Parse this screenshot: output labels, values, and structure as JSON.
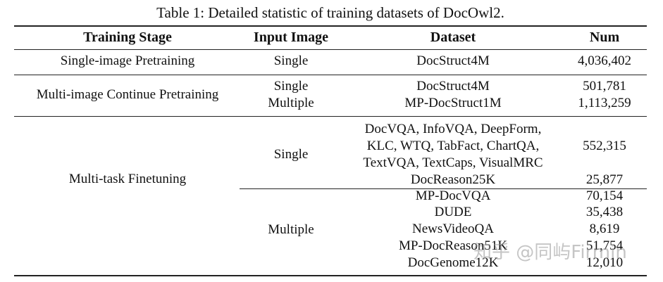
{
  "caption": "Table 1: Detailed statistic of training datasets of DocOwl2.",
  "headers": {
    "stage": "Training Stage",
    "input": "Input Image",
    "dataset": "Dataset",
    "num": "Num"
  },
  "rows": {
    "single_pretrain": {
      "stage": "Single-image Pretraining",
      "input": "Single",
      "dataset": "DocStruct4M",
      "num": "4,036,402"
    },
    "multi_pretrain": {
      "stage": "Multi-image Continue Pretraining",
      "single": {
        "input": "Single",
        "dataset": "DocStruct4M",
        "num": "501,781"
      },
      "multiple": {
        "input": "Multiple",
        "dataset": "MP-DocStruct1M",
        "num": "1,113,259"
      }
    },
    "finetune": {
      "stage": "Multi-task Finetuning",
      "single_input": "Single",
      "single_datasets": {
        "line1": "DocVQA, InfoVQA, DeepForm,",
        "line2": "KLC, WTQ, TabFact, ChartQA,",
        "line3": "TextVQA, TextCaps, VisualMRC",
        "num": "552,315"
      },
      "docreason": {
        "dataset": "DocReason25K",
        "num": "25,877"
      },
      "multiple_input": "Multiple",
      "multiple": [
        {
          "dataset": "MP-DocVQA",
          "num": "70,154"
        },
        {
          "dataset": "DUDE",
          "num": "35,438"
        },
        {
          "dataset": "NewsVideoQA",
          "num": "8,619"
        },
        {
          "dataset": "MP-DocReason51K",
          "num": "51,754"
        },
        {
          "dataset": "DocGenome12K",
          "num": "12,010"
        }
      ]
    }
  },
  "watermark": "知乎 @同屿Firmin"
}
